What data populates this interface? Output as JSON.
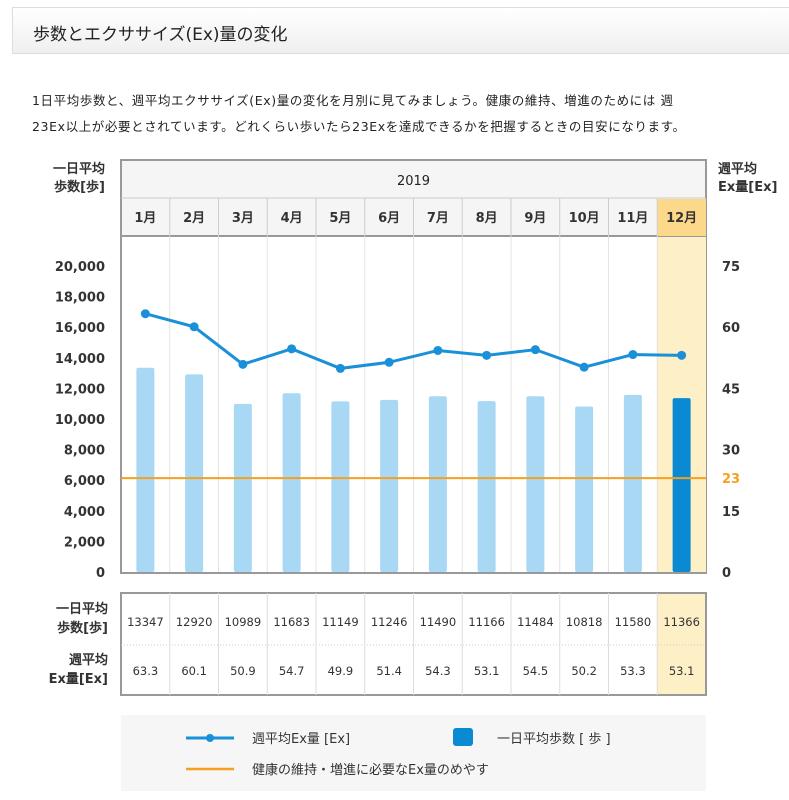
{
  "header": {
    "title": "歩数とエクササイズ(Ex)量の変化"
  },
  "intro": {
    "line1": "1日平均歩数と、週平均エクササイズ(Ex)量の変化を月別に見てみましょう。健康の維持、増進のためには 週",
    "line2": "23Ex以上が必要とされています。どれくらい歩いたら23Exを達成できるかを把握するときの目安になります。"
  },
  "chart_data": {
    "type": "bar+line",
    "year_label": "2019",
    "categories": [
      "1月",
      "2月",
      "3月",
      "4月",
      "5月",
      "6月",
      "7月",
      "8月",
      "9月",
      "10月",
      "11月",
      "12月"
    ],
    "highlight_category": "12月",
    "left_axis": {
      "label_line1": "一日平均",
      "label_line2": "歩数[歩]",
      "ylim": [
        0,
        20000
      ],
      "ticks": [
        "20,000",
        "18,000",
        "16,000",
        "14,000",
        "12,000",
        "10,000",
        "8,000",
        "6,000",
        "4,000",
        "2,000",
        "0"
      ]
    },
    "right_axis": {
      "label_line1": "週平均",
      "label_line2": "Ex量[Ex]",
      "ylim": [
        0,
        75
      ],
      "ticks": [
        "75",
        "60",
        "45",
        "30",
        "23",
        "15",
        "0"
      ],
      "tick_values": [
        75,
        60,
        45,
        30,
        23,
        15,
        0
      ]
    },
    "series": [
      {
        "name": "一日平均歩数 [ 歩 ]",
        "type": "bar",
        "axis": "left",
        "values": [
          13347,
          12920,
          10989,
          11683,
          11149,
          11246,
          11490,
          11166,
          11484,
          10818,
          11580,
          11366
        ]
      },
      {
        "name": "週平均Ex量 [Ex]",
        "type": "line",
        "axis": "right",
        "values": [
          63.3,
          60.1,
          50.9,
          54.7,
          49.9,
          51.4,
          54.3,
          53.1,
          54.5,
          50.2,
          53.3,
          53.1
        ]
      }
    ],
    "reference_line": {
      "name": "健康の維持・増進に必要なEx量のめやす",
      "value": 23,
      "axis": "right"
    },
    "table": {
      "row1_label_line1": "一日平均",
      "row1_label_line2": "歩数[歩]",
      "row2_label_line1": "週平均",
      "row2_label_line2": "Ex量[Ex]",
      "steps": [
        "13347",
        "12920",
        "10989",
        "11683",
        "11149",
        "11246",
        "11490",
        "11166",
        "11484",
        "10818",
        "11580",
        "11366"
      ],
      "ex": [
        "63.3",
        "60.1",
        "50.9",
        "54.7",
        "49.9",
        "51.4",
        "54.3",
        "53.1",
        "54.5",
        "50.2",
        "53.3",
        "53.1"
      ]
    },
    "legend": {
      "line": "週平均Ex量 [Ex]",
      "bar": "一日平均歩数 [ 歩 ]",
      "ref": "健康の維持・増進に必要なEx量のめやす"
    },
    "colors": {
      "bar": "#a8d8f4",
      "bar_highlight": "#0a8ad2",
      "line": "#1a90d8",
      "reference": "#f5a020",
      "highlight_bg": "#fdefc6",
      "highlight_header": "#fcd98a"
    }
  }
}
